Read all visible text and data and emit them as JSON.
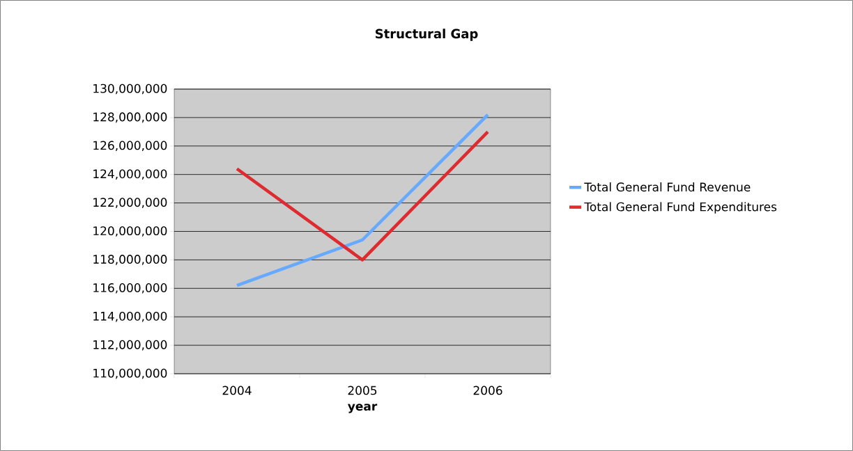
{
  "chart_data": {
    "type": "line",
    "title": "Structural Gap",
    "xlabel": "year",
    "categories": [
      "2004",
      "2005",
      "2006"
    ],
    "series": [
      {
        "name": "Total General Fund Revenue",
        "color": "#66aaff",
        "values": [
          116200000,
          119400000,
          128200000
        ]
      },
      {
        "name": "Total General Fund Expenditures",
        "color": "#dd2b2f",
        "values": [
          124400000,
          118000000,
          127000000
        ]
      }
    ],
    "ylim": [
      110000000,
      130000000
    ],
    "yticks": [
      {
        "value": 110000000,
        "label": "110,000,000"
      },
      {
        "value": 112000000,
        "label": "112,000,000"
      },
      {
        "value": 114000000,
        "label": "114,000,000"
      },
      {
        "value": 116000000,
        "label": "116,000,000"
      },
      {
        "value": 118000000,
        "label": "118,000,000"
      },
      {
        "value": 120000000,
        "label": "120,000,000"
      },
      {
        "value": 122000000,
        "label": "122,000,000"
      },
      {
        "value": 124000000,
        "label": "124,000,000"
      },
      {
        "value": 126000000,
        "label": "126,000,000"
      },
      {
        "value": 128000000,
        "label": "128,000,000"
      },
      {
        "value": 130000000,
        "label": "130,000,000"
      }
    ],
    "grid": "y",
    "legend": "right",
    "marker": "none",
    "line_style": "solid"
  }
}
